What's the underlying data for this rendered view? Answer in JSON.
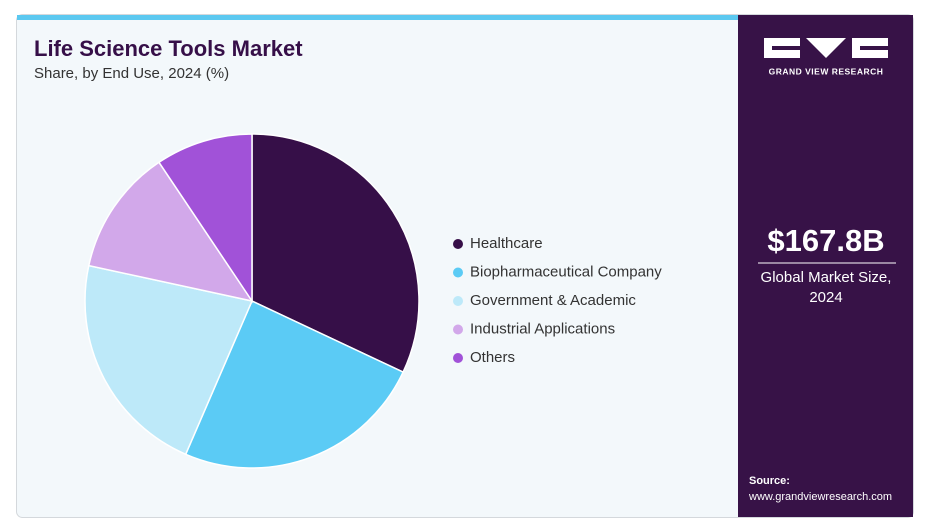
{
  "header": {
    "title": "Life Science Tools Market",
    "subtitle": "Share, by End Use, 2024 (%)"
  },
  "chart_data": {
    "type": "pie",
    "categories": [
      "Healthcare",
      "Biopharmaceutical Company",
      "Government & Academic",
      "Industrial Applications",
      "Others"
    ],
    "values": [
      32.0,
      24.5,
      21.9,
      12.2,
      9.4
    ],
    "colors": [
      "#360f48",
      "#5bcbf5",
      "#bde9f9",
      "#d2a8ea",
      "#a152d8"
    ]
  },
  "side_panel": {
    "brand": "GRAND VIEW RESEARCH",
    "market_value": "$167.8B",
    "market_label": "Global Market Size, 2024",
    "source_label": "Source:",
    "source_url": "www.grandviewresearch.com"
  }
}
